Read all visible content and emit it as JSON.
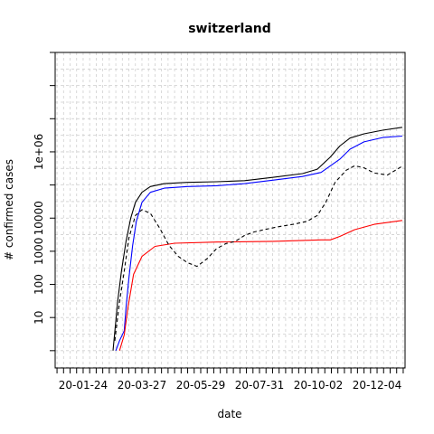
{
  "chart_data": {
    "type": "line",
    "title": "switzerland",
    "xlabel": "date",
    "ylabel": "# confirmed cases",
    "y_scale": "log",
    "ylim": [
      0.3,
      1000000000
    ],
    "xlim": [
      "2019-12-25",
      "2021-01-03"
    ],
    "grid": true,
    "x_tick_labels": [
      "20-01-24",
      "20-03-27",
      "20-05-29",
      "20-07-31",
      "20-10-02",
      "20-12-04"
    ],
    "y_tick_labels": [
      "10",
      "100",
      "1000",
      "10000",
      "1e+06"
    ],
    "series": [
      {
        "color": "#000000",
        "dash": "solid",
        "points": [
          [
            "2020-02-25",
            1
          ],
          [
            "2020-03-01",
            30
          ],
          [
            "2020-03-05",
            250
          ],
          [
            "2020-03-10",
            2000
          ],
          [
            "2020-03-15",
            10000
          ],
          [
            "2020-03-20",
            30000
          ],
          [
            "2020-03-27",
            60000
          ],
          [
            "2020-04-05",
            90000
          ],
          [
            "2020-04-20",
            110000
          ],
          [
            "2020-05-15",
            120000
          ],
          [
            "2020-06-15",
            125000
          ],
          [
            "2020-07-15",
            135000
          ],
          [
            "2020-08-15",
            170000
          ],
          [
            "2020-09-15",
            220000
          ],
          [
            "2020-10-01",
            300000
          ],
          [
            "2020-10-15",
            700000
          ],
          [
            "2020-10-25",
            1500000
          ],
          [
            "2020-11-05",
            2600000
          ],
          [
            "2020-11-20",
            3500000
          ],
          [
            "2020-12-10",
            4500000
          ],
          [
            "2020-12-31",
            5500000
          ]
        ]
      },
      {
        "color": "#0000ff",
        "dash": "solid",
        "points": [
          [
            "2020-02-28",
            1
          ],
          [
            "2020-03-03",
            2
          ],
          [
            "2020-03-08",
            4
          ],
          [
            "2020-03-10",
            20
          ],
          [
            "2020-03-13",
            150
          ],
          [
            "2020-03-17",
            1500
          ],
          [
            "2020-03-21",
            8000
          ],
          [
            "2020-03-27",
            30000
          ],
          [
            "2020-04-05",
            60000
          ],
          [
            "2020-04-20",
            80000
          ],
          [
            "2020-05-15",
            90000
          ],
          [
            "2020-06-15",
            95000
          ],
          [
            "2020-07-15",
            110000
          ],
          [
            "2020-08-15",
            140000
          ],
          [
            "2020-09-15",
            180000
          ],
          [
            "2020-10-05",
            240000
          ],
          [
            "2020-10-25",
            600000
          ],
          [
            "2020-11-05",
            1200000
          ],
          [
            "2020-11-20",
            2000000
          ],
          [
            "2020-12-10",
            2700000
          ],
          [
            "2020-12-31",
            3000000
          ]
        ]
      },
      {
        "color": "#ff0000",
        "dash": "solid",
        "points": [
          [
            "2020-03-03",
            1
          ],
          [
            "2020-03-08",
            3
          ],
          [
            "2020-03-12",
            20
          ],
          [
            "2020-03-18",
            200
          ],
          [
            "2020-03-27",
            700
          ],
          [
            "2020-04-10",
            1400
          ],
          [
            "2020-05-01",
            1750
          ],
          [
            "2020-06-15",
            1900
          ],
          [
            "2020-08-15",
            2000
          ],
          [
            "2020-10-05",
            2200
          ],
          [
            "2020-10-15",
            2200
          ],
          [
            "2020-10-25",
            2800
          ],
          [
            "2020-11-10",
            4500
          ],
          [
            "2020-12-01",
            6500
          ],
          [
            "2020-12-31",
            8500
          ]
        ]
      },
      {
        "color": "#000000",
        "dash": "dashed",
        "points": [
          [
            "2020-02-27",
            2
          ],
          [
            "2020-03-03",
            30
          ],
          [
            "2020-03-08",
            250
          ],
          [
            "2020-03-13",
            2500
          ],
          [
            "2020-03-20",
            12000
          ],
          [
            "2020-03-27",
            18000
          ],
          [
            "2020-04-05",
            14000
          ],
          [
            "2020-04-15",
            5000
          ],
          [
            "2020-04-25",
            1500
          ],
          [
            "2020-05-05",
            700
          ],
          [
            "2020-05-15",
            450
          ],
          [
            "2020-05-25",
            350
          ],
          [
            "2020-06-05",
            600
          ],
          [
            "2020-06-15",
            1200
          ],
          [
            "2020-06-25",
            1700
          ],
          [
            "2020-07-05",
            2000
          ],
          [
            "2020-07-15",
            3000
          ],
          [
            "2020-07-25",
            3800
          ],
          [
            "2020-08-05",
            4500
          ],
          [
            "2020-08-20",
            5500
          ],
          [
            "2020-09-05",
            6500
          ],
          [
            "2020-09-20",
            8000
          ],
          [
            "2020-10-01",
            12000
          ],
          [
            "2020-10-10",
            30000
          ],
          [
            "2020-10-20",
            120000
          ],
          [
            "2020-11-01",
            280000
          ],
          [
            "2020-11-10",
            380000
          ],
          [
            "2020-11-20",
            330000
          ],
          [
            "2020-12-01",
            230000
          ],
          [
            "2020-12-15",
            200000
          ],
          [
            "2020-12-31",
            370000
          ]
        ]
      }
    ]
  }
}
